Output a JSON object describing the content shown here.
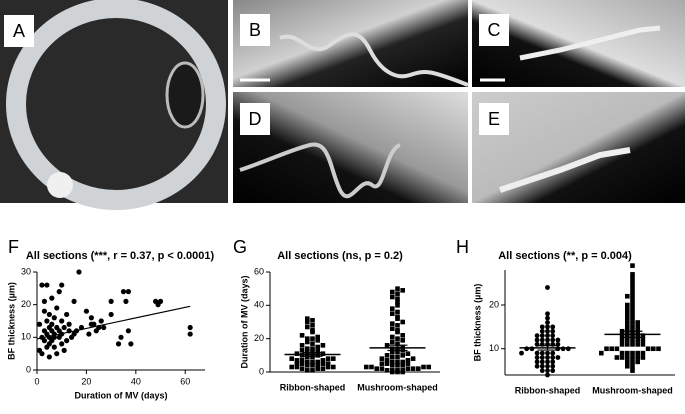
{
  "photos": {
    "labels": [
      "A",
      "B",
      "C",
      "D",
      "E"
    ]
  },
  "chart_data": [
    {
      "type": "scatter",
      "panel": "F",
      "title": "All sections (***, r = 0.37, p < 0.0001)",
      "x_label": "Duration of MV (days)",
      "y_label": "BF thickness (µm)",
      "x": [
        1,
        1,
        2,
        2,
        2,
        3,
        3,
        3,
        3,
        4,
        4,
        4,
        4,
        5,
        5,
        5,
        5,
        5,
        6,
        6,
        6,
        6,
        7,
        7,
        7,
        7,
        8,
        8,
        8,
        9,
        9,
        9,
        10,
        10,
        10,
        10,
        11,
        11,
        12,
        12,
        13,
        13,
        14,
        15,
        15,
        16,
        17,
        18,
        20,
        21,
        22,
        22,
        23,
        24,
        25,
        26,
        27,
        30,
        30,
        33,
        34,
        35,
        36,
        37,
        37,
        38,
        48,
        49,
        50,
        62,
        62
      ],
      "values": [
        6,
        14,
        26,
        10,
        5,
        12,
        9,
        18,
        21,
        11,
        7,
        15,
        26,
        10,
        13,
        8,
        17,
        4,
        12,
        9,
        22,
        14,
        11,
        16,
        7,
        10,
        13,
        19,
        5,
        10,
        24,
        12,
        11,
        8,
        15,
        26,
        13,
        6,
        9,
        17,
        12,
        14,
        10,
        11,
        21,
        12,
        30,
        13,
        18,
        11,
        14,
        16,
        14,
        12,
        13,
        15,
        13,
        17,
        21,
        8,
        10,
        24,
        21,
        24,
        12,
        8,
        21,
        20,
        21,
        13,
        11
      ],
      "trendline": {
        "x": [
          0,
          62
        ],
        "y": [
          9.5,
          19.5
        ]
      },
      "color": "#000000",
      "xlim": [
        0,
        68
      ],
      "xticks": [
        0,
        20,
        40,
        60
      ],
      "ylim": [
        0,
        30
      ],
      "yticks": [
        0,
        10,
        20,
        30
      ]
    },
    {
      "type": "strip",
      "panel": "G",
      "title": "All sections (ns, p = 0.2)",
      "y_label": "Duration of MV (days)",
      "categories": [
        "Ribbon-shaped",
        "Mushroom-shaped"
      ],
      "values": [
        [
          1,
          1,
          2,
          2,
          2,
          3,
          3,
          3,
          3,
          4,
          4,
          4,
          5,
          5,
          5,
          5,
          6,
          6,
          6,
          7,
          7,
          7,
          8,
          8,
          8,
          9,
          9,
          10,
          10,
          11,
          11,
          12,
          12,
          13,
          13,
          14,
          14,
          15,
          16,
          16,
          17,
          18,
          19,
          20,
          20,
          21,
          22,
          24,
          25,
          27,
          28,
          30,
          31,
          32
        ],
        [
          0,
          0,
          0,
          1,
          1,
          1,
          1,
          2,
          2,
          2,
          2,
          2,
          3,
          3,
          3,
          3,
          4,
          4,
          4,
          5,
          5,
          5,
          6,
          6,
          6,
          7,
          7,
          8,
          8,
          9,
          9,
          10,
          10,
          11,
          12,
          12,
          13,
          14,
          14,
          15,
          16,
          17,
          18,
          19,
          20,
          21,
          22,
          24,
          25,
          26,
          28,
          29,
          30,
          32,
          33,
          35,
          36,
          38,
          40,
          42,
          44,
          45,
          47,
          48,
          49,
          50
        ]
      ],
      "mean": [
        10.5,
        14.5
      ],
      "sem": [
        1.1,
        1.6
      ],
      "marker": [
        "square",
        "square"
      ],
      "color": "#000000",
      "ylim": [
        0,
        60
      ],
      "yticks": [
        0,
        20,
        40,
        60
      ]
    },
    {
      "type": "strip",
      "panel": "H",
      "title": "All sections (**, p = 0.004)",
      "y_label": "BF thickness (µm)",
      "categories": [
        "Ribbon-shaped",
        "Mushroom-shaped"
      ],
      "values": [
        [
          4,
          5,
          5,
          6,
          6,
          6,
          7,
          7,
          7,
          7,
          8,
          8,
          8,
          8,
          9,
          9,
          9,
          9,
          10,
          10,
          10,
          10,
          10,
          11,
          11,
          11,
          11,
          12,
          12,
          12,
          12,
          13,
          13,
          13,
          14,
          14,
          14,
          15,
          15,
          15,
          16,
          17,
          18,
          24,
          5,
          6,
          8,
          9,
          11,
          12,
          13
        ],
        [
          5,
          6,
          6,
          7,
          7,
          7,
          8,
          8,
          8,
          8,
          8,
          9,
          9,
          9,
          9,
          9,
          10,
          10,
          10,
          10,
          10,
          11,
          11,
          11,
          11,
          12,
          12,
          12,
          12,
          13,
          13,
          13,
          13,
          14,
          14,
          14,
          15,
          15,
          15,
          16,
          16,
          16,
          17,
          17,
          18,
          18,
          19,
          19,
          20,
          20,
          21,
          22,
          22,
          23,
          24,
          25,
          26,
          27,
          29,
          10,
          11,
          12,
          9,
          8,
          13,
          14
        ]
      ],
      "mean": [
        10.2,
        13.3
      ],
      "sem": [
        0.5,
        0.7
      ],
      "marker": [
        "circle",
        "square"
      ],
      "color": "#000000",
      "ylim": [
        4,
        28
      ],
      "yticks": [
        10,
        20
      ]
    }
  ]
}
